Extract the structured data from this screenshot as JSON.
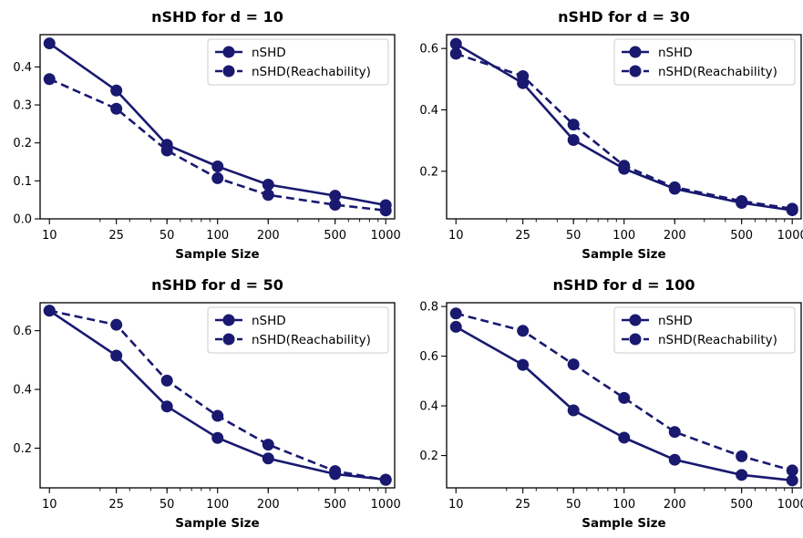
{
  "colors": {
    "series": "#191970",
    "axis": "#000000",
    "legend_border": "#cccccc"
  },
  "chart_data": [
    {
      "type": "line",
      "title": "nSHD for d = 10",
      "xlabel": "Sample Size",
      "ylabel": "",
      "xscale": "log",
      "x": [
        10,
        25,
        50,
        100,
        200,
        500,
        1000
      ],
      "xtick_labels": [
        "10",
        "25",
        "50",
        "100",
        "200",
        "500",
        "1000"
      ],
      "yticks": [
        0.0,
        0.1,
        0.2,
        0.3,
        0.4
      ],
      "ytick_labels": [
        "0.0",
        "0.1",
        "0.2",
        "0.3",
        "0.4"
      ],
      "ylim": [
        0.0,
        0.485
      ],
      "legend": "upper right",
      "grid": false,
      "series": [
        {
          "name": "nSHD",
          "style": "solid",
          "values": [
            0.462,
            0.338,
            0.195,
            0.138,
            0.09,
            0.061,
            0.036
          ]
        },
        {
          "name": "nSHD(Reachability)",
          "style": "dashed",
          "values": [
            0.368,
            0.29,
            0.18,
            0.107,
            0.063,
            0.037,
            0.022
          ]
        }
      ]
    },
    {
      "type": "line",
      "title": "nSHD for d = 30",
      "xlabel": "Sample Size",
      "ylabel": "",
      "xscale": "log",
      "x": [
        10,
        25,
        50,
        100,
        200,
        500,
        1000
      ],
      "xtick_labels": [
        "10",
        "25",
        "50",
        "100",
        "200",
        "500",
        "1000"
      ],
      "yticks": [
        0.2,
        0.4,
        0.6
      ],
      "ytick_labels": [
        "0.2",
        "0.4",
        "0.6"
      ],
      "ylim": [
        0.045,
        0.645
      ],
      "legend": "upper right",
      "grid": false,
      "series": [
        {
          "name": "nSHD",
          "style": "solid",
          "values": [
            0.615,
            0.487,
            0.302,
            0.208,
            0.143,
            0.097,
            0.073
          ]
        },
        {
          "name": "nSHD(Reachability)",
          "style": "dashed",
          "values": [
            0.583,
            0.51,
            0.352,
            0.218,
            0.148,
            0.103,
            0.078
          ]
        }
      ]
    },
    {
      "type": "line",
      "title": "nSHD for d = 50",
      "xlabel": "Sample Size",
      "ylabel": "",
      "xscale": "log",
      "x": [
        10,
        25,
        50,
        100,
        200,
        500,
        1000
      ],
      "xtick_labels": [
        "10",
        "25",
        "50",
        "100",
        "200",
        "500",
        "1000"
      ],
      "yticks": [
        0.2,
        0.4,
        0.6
      ],
      "ytick_labels": [
        "0.2",
        "0.4",
        "0.6"
      ],
      "ylim": [
        0.065,
        0.695
      ],
      "legend": "upper right",
      "grid": false,
      "series": [
        {
          "name": "nSHD",
          "style": "solid",
          "values": [
            0.668,
            0.515,
            0.342,
            0.235,
            0.165,
            0.112,
            0.093
          ]
        },
        {
          "name": "nSHD(Reachability)",
          "style": "dashed",
          "values": [
            0.668,
            0.62,
            0.43,
            0.31,
            0.212,
            0.122,
            0.092
          ]
        }
      ]
    },
    {
      "type": "line",
      "title": "nSHD for d = 100",
      "xlabel": "Sample Size",
      "ylabel": "",
      "xscale": "log",
      "x": [
        10,
        25,
        50,
        100,
        200,
        500,
        1000
      ],
      "xtick_labels": [
        "10",
        "25",
        "50",
        "100",
        "200",
        "500",
        "1000"
      ],
      "yticks": [
        0.2,
        0.4,
        0.6,
        0.8
      ],
      "ytick_labels": [
        "0.2",
        "0.4",
        "0.6",
        "0.8"
      ],
      "ylim": [
        0.07,
        0.815
      ],
      "legend": "upper right",
      "grid": false,
      "series": [
        {
          "name": "nSHD",
          "style": "solid",
          "values": [
            0.718,
            0.565,
            0.382,
            0.272,
            0.183,
            0.122,
            0.1
          ]
        },
        {
          "name": "nSHD(Reachability)",
          "style": "dashed",
          "values": [
            0.772,
            0.702,
            0.567,
            0.432,
            0.295,
            0.197,
            0.14
          ]
        }
      ]
    }
  ]
}
